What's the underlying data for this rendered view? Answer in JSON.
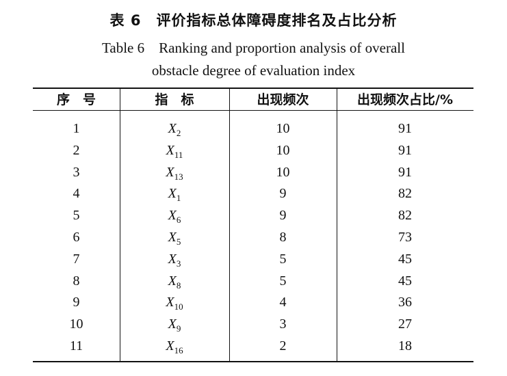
{
  "title": {
    "cn": "表 6　评价指标总体障碍度排名及占比分析",
    "en_line1": "Table 6　Ranking and proportion analysis of overall",
    "en_line2": "obstacle degree of evaluation index"
  },
  "table": {
    "headers": [
      "序　号",
      "指　标",
      "出现频次",
      "出现频次占比/%"
    ],
    "rows": [
      {
        "rank": "1",
        "var": "X",
        "sub": "2",
        "freq": "10",
        "pct": "91"
      },
      {
        "rank": "2",
        "var": "X",
        "sub": "11",
        "freq": "10",
        "pct": "91"
      },
      {
        "rank": "3",
        "var": "X",
        "sub": "13",
        "freq": "10",
        "pct": "91"
      },
      {
        "rank": "4",
        "var": "X",
        "sub": "1",
        "freq": "9",
        "pct": "82"
      },
      {
        "rank": "5",
        "var": "X",
        "sub": "6",
        "freq": "9",
        "pct": "82"
      },
      {
        "rank": "6",
        "var": "X",
        "sub": "5",
        "freq": "8",
        "pct": "73"
      },
      {
        "rank": "7",
        "var": "X",
        "sub": "3",
        "freq": "5",
        "pct": "45"
      },
      {
        "rank": "8",
        "var": "X",
        "sub": "8",
        "freq": "5",
        "pct": "45"
      },
      {
        "rank": "9",
        "var": "X",
        "sub": "10",
        "freq": "4",
        "pct": "36"
      },
      {
        "rank": "10",
        "var": "X",
        "sub": "9",
        "freq": "3",
        "pct": "27"
      },
      {
        "rank": "11",
        "var": "X",
        "sub": "16",
        "freq": "2",
        "pct": "18"
      }
    ]
  }
}
